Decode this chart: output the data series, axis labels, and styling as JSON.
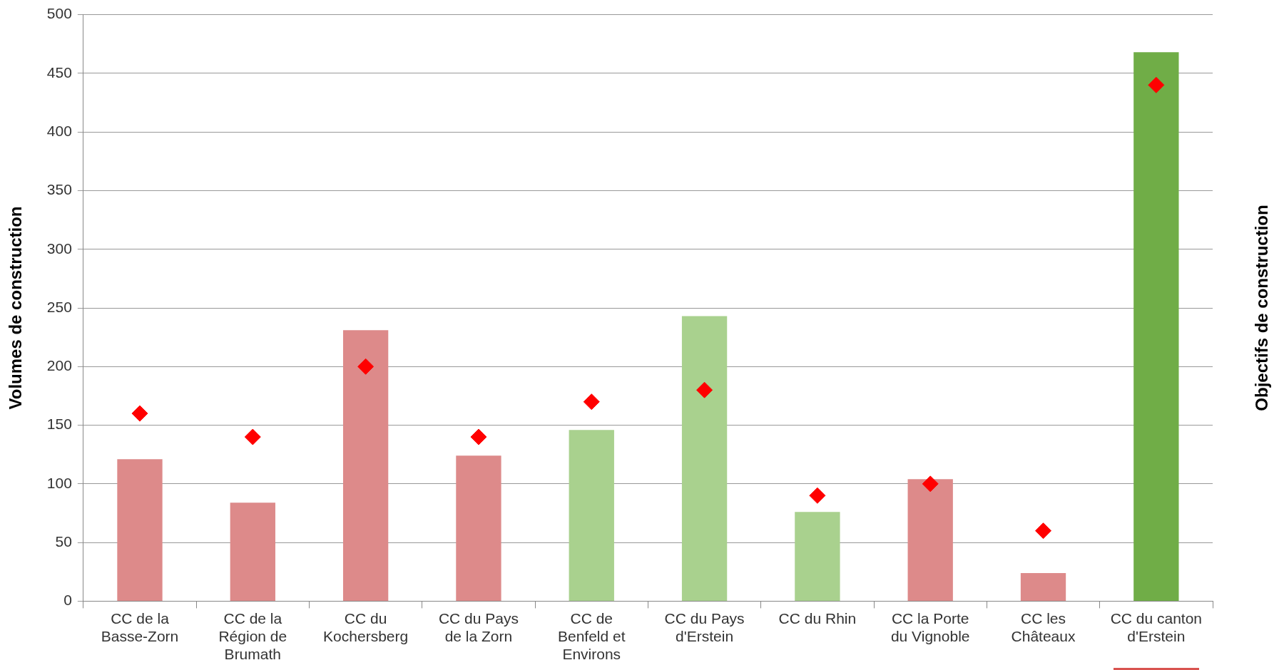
{
  "chart_data": {
    "type": "bar",
    "ylabel": "Volumes de construction",
    "y2label": "Objectifs de construction",
    "categories": [
      "CC de la Basse-Zorn",
      "CC de la Région de Brumath",
      "CC du Kochersberg",
      "CC du Pays de la Zorn",
      "CC de Benfeld et Environs",
      "CC du Pays d'Erstein",
      "CC du Rhin",
      "CC la Porte du Vignoble",
      "CC les Châteaux",
      "CC du canton d'Erstein"
    ],
    "ylim": [
      0,
      500
    ],
    "yticks": [
      0,
      50,
      100,
      150,
      200,
      250,
      300,
      350,
      400,
      450,
      500
    ],
    "grid": "y",
    "marker": "diamond",
    "series": [
      {
        "colors": [
          "#dd8a8a",
          "#dd8a8a",
          "#dd8a8a",
          "#dd8a8a",
          "#a9d18e",
          "#a9d18e",
          "#a9d18e",
          "#dd8a8a",
          "#dd8a8a",
          "#70ad47"
        ],
        "values": [
          121,
          84,
          231,
          124,
          146,
          243,
          76,
          104,
          24,
          468
        ]
      },
      {
        "type": "scatter",
        "color": "#ff0000",
        "values": [
          160,
          140,
          200,
          140,
          170,
          180,
          90,
          100,
          60,
          440
        ]
      }
    ]
  }
}
